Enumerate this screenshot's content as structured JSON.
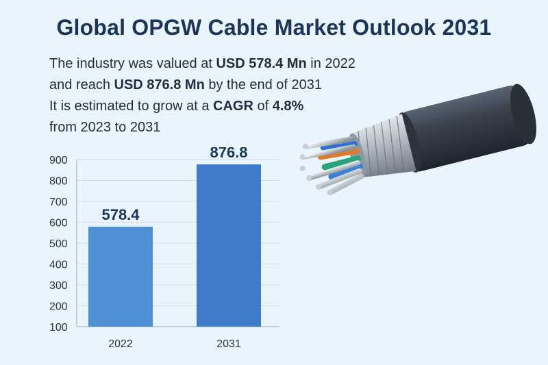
{
  "header": {
    "title": "Global OPGW Cable Market Outlook 2031"
  },
  "summary": {
    "line1_pre": "The industry was valued at ",
    "line1_bold": "USD 578.4 Mn",
    "line1_post": " in 2022",
    "line2_pre": "and reach ",
    "line2_bold": "USD 876.8 Mn",
    "line2_post": " by the end of 2031",
    "line3_pre": "It is estimated to grow at a ",
    "line3_bold1": "CAGR",
    "line3_mid": " of ",
    "line3_bold2": "4.8%",
    "line4": "from 2023 to 2031"
  },
  "chart_data": {
    "type": "bar",
    "title": "",
    "xlabel": "",
    "ylabel": "",
    "categories": [
      "2022",
      "2031"
    ],
    "values": [
      578.4,
      876.8
    ],
    "value_labels": [
      "578.4",
      "876.8"
    ],
    "ylim": [
      100,
      900
    ],
    "yticks": [
      100,
      200,
      300,
      400,
      500,
      600,
      700,
      800,
      900
    ],
    "grid": true,
    "legend": "none",
    "colors": [
      "#4f8fd4",
      "#3f7cc8"
    ]
  },
  "illustration": {
    "icon": "fiber-optic-cable-icon"
  }
}
